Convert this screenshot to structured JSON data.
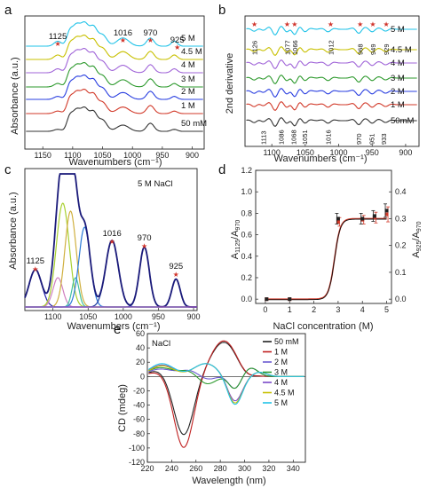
{
  "chart_data": [
    {
      "panel": "a",
      "type": "line",
      "xlabel": "Wavenumbers (cm⁻¹)",
      "ylabel": "Absorbance (a.u.)",
      "xlim": [
        1180,
        880
      ],
      "xticks": [
        1150,
        1100,
        1050,
        1000,
        950,
        900
      ],
      "peak_labels": [
        {
          "text": "1125",
          "x": 1125
        },
        {
          "text": "1016",
          "x": 1016
        },
        {
          "text": "970",
          "x": 970
        },
        {
          "text": "925",
          "x": 925
        }
      ],
      "series": [
        {
          "name": "5 M",
          "color": "#22c3e8"
        },
        {
          "name": "4.5 M",
          "color": "#c8c000"
        },
        {
          "name": "4 M",
          "color": "#a064d8"
        },
        {
          "name": "3 M",
          "color": "#2e9a2e"
        },
        {
          "name": "2 M",
          "color": "#2a3fe0"
        },
        {
          "name": "1 M",
          "color": "#d23a2a"
        },
        {
          "name": "50 mM",
          "color": "#333333"
        }
      ]
    },
    {
      "panel": "b",
      "type": "line",
      "xlabel": "Wavenumbers (cm⁻¹)",
      "ylabel": "2nd derivative",
      "xlim": [
        1140,
        880
      ],
      "xticks": [
        1100,
        1050,
        1000,
        950,
        900
      ],
      "top_labels": [
        "1126",
        "1077",
        "1066",
        "1012",
        "968",
        "949",
        "929"
      ],
      "top_label_x": [
        1126,
        1077,
        1066,
        1012,
        968,
        949,
        929
      ],
      "bottom_labels": [
        "1113",
        "1086",
        "1068",
        "1051",
        "1016",
        "970",
        "951",
        "933"
      ],
      "bottom_label_x": [
        1113,
        1086,
        1068,
        1051,
        1016,
        970,
        951,
        933
      ],
      "series": [
        {
          "name": "5 M",
          "color": "#22c3e8"
        },
        {
          "name": "4.5 M",
          "color": "#c8c000"
        },
        {
          "name": "4 M",
          "color": "#a064d8"
        },
        {
          "name": "3 M",
          "color": "#2e9a2e"
        },
        {
          "name": "2 M",
          "color": "#2a3fe0"
        },
        {
          "name": "1 M",
          "color": "#d23a2a"
        },
        {
          "name": "50mM",
          "color": "#333333"
        }
      ]
    },
    {
      "panel": "c",
      "type": "line",
      "annotation": "5 M NaCl",
      "xlabel": "Wavenumbers (cm⁻¹)",
      "ylabel": "Absorbance (a.u.)",
      "xlim": [
        1140,
        895
      ],
      "xticks": [
        1100,
        1050,
        1000,
        950,
        900
      ],
      "peak_labels": [
        {
          "text": "1125",
          "x": 1125
        },
        {
          "text": "1016",
          "x": 1016
        },
        {
          "text": "970",
          "x": 970
        },
        {
          "text": "925",
          "x": 925
        }
      ],
      "envelope_color": "#1a1a7a",
      "components": [
        {
          "center": 1125,
          "height": 0.28,
          "width": 9,
          "color": "#2222aa"
        },
        {
          "center": 1093,
          "height": 0.22,
          "width": 7,
          "color": "#d080c0"
        },
        {
          "center": 1086,
          "height": 0.78,
          "width": 9,
          "color": "#a8d030"
        },
        {
          "center": 1075,
          "height": 0.72,
          "width": 8,
          "color": "#d0b040"
        },
        {
          "center": 1068,
          "height": 0.22,
          "width": 5,
          "color": "#40c0a0"
        },
        {
          "center": 1055,
          "height": 0.6,
          "width": 8,
          "color": "#2a7ad8"
        },
        {
          "center": 1016,
          "height": 0.5,
          "width": 9,
          "color": "#1a3aa0"
        },
        {
          "center": 970,
          "height": 0.45,
          "width": 7,
          "color": "#1a3aa0"
        },
        {
          "center": 925,
          "height": 0.21,
          "width": 6,
          "color": "#1a3aa0"
        }
      ]
    },
    {
      "panel": "d",
      "type": "line",
      "xlabel": "NaCl concentration (M)",
      "ylabel_left": "A1125/A970",
      "ylabel_right": "A925/A970",
      "xlim": [
        -0.4,
        5.2
      ],
      "xticks": [
        0,
        1,
        2,
        3,
        4,
        5
      ],
      "ylim_left": [
        -0.04,
        1.2
      ],
      "yticks_left": [
        0.0,
        0.2,
        0.4,
        0.6,
        0.8,
        1.0,
        1.2
      ],
      "ylim_right": [
        -0.016,
        0.48
      ],
      "yticks_right": [
        0.0,
        0.1,
        0.2,
        0.3,
        0.4
      ],
      "left_color": "#d23a2a",
      "x": [
        0.05,
        1,
        3,
        4,
        4.5,
        5
      ],
      "series": [
        {
          "axis": "left",
          "color": "#d23a2a",
          "values": [
            0.0,
            0.0,
            0.72,
            0.74,
            0.76,
            0.79
          ],
          "errors": [
            0.0,
            0.0,
            0.04,
            0.04,
            0.05,
            0.07
          ]
        },
        {
          "axis": "right",
          "color": "#222222",
          "values": [
            0.0,
            0.0,
            0.3,
            0.3,
            0.31,
            0.33
          ],
          "errors": [
            0.0,
            0.0,
            0.02,
            0.02,
            0.02,
            0.025
          ]
        }
      ],
      "fit": {
        "midpoint": 2.85,
        "slope": 0.12,
        "top": 0.75
      }
    },
    {
      "panel": "e",
      "type": "line",
      "annotation": "NaCl",
      "xlabel": "Wavelength (nm)",
      "ylabel": "CD (mdeg)",
      "xlim": [
        220,
        350
      ],
      "xticks": [
        220,
        240,
        260,
        280,
        300,
        320,
        340
      ],
      "ylim": [
        -120,
        60
      ],
      "yticks": [
        -120,
        -100,
        -80,
        -60,
        -40,
        -20,
        0,
        20,
        40,
        60
      ],
      "legend_position": "top-right",
      "series": [
        {
          "name": "50 mM",
          "color": "#222222"
        },
        {
          "name": "1 M",
          "color": "#c02020"
        },
        {
          "name": "2 M",
          "color": "#6a5ad0"
        },
        {
          "name": "3 M",
          "color": "#2e9a2e"
        },
        {
          "name": "4 M",
          "color": "#7a48c8"
        },
        {
          "name": "4.5 M",
          "color": "#c8c000"
        },
        {
          "name": "5 M",
          "color": "#22c3e8"
        }
      ]
    }
  ]
}
